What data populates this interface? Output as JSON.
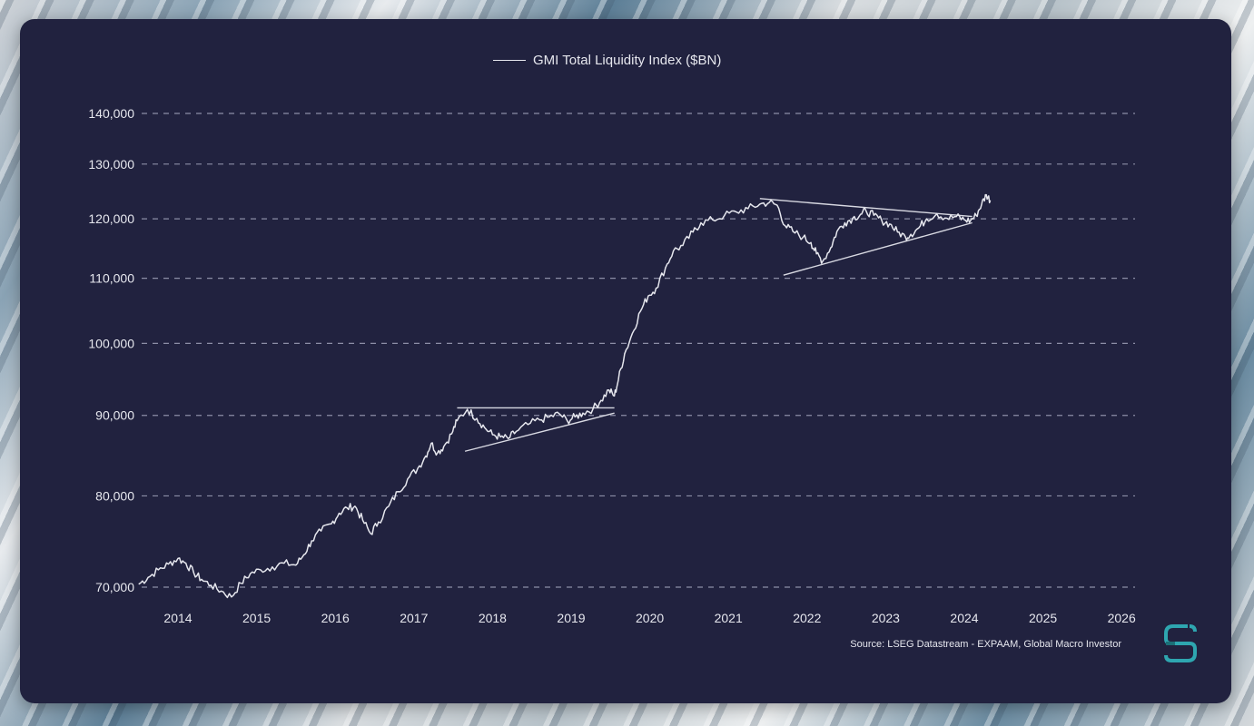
{
  "chart_data": {
    "type": "line",
    "y_scale": "log",
    "ylim": [
      69000,
      140000
    ],
    "y_ticks": [
      70000,
      80000,
      90000,
      100000,
      110000,
      120000,
      130000,
      140000
    ],
    "y_tick_labels": [
      "70,000",
      "80,000",
      "90,000",
      "100,000",
      "110,000",
      "120,000",
      "130,000",
      "140,000"
    ],
    "x_ticks": [
      2014,
      2015,
      2016,
      2017,
      2018,
      2019,
      2020,
      2021,
      2022,
      2023,
      2024,
      2025,
      2026
    ],
    "x_tick_labels": [
      "2014",
      "2015",
      "2016",
      "2017",
      "2018",
      "2019",
      "2020",
      "2021",
      "2022",
      "2023",
      "2024",
      "2025",
      "2026"
    ],
    "xlim": [
      2013.5,
      2026.3
    ],
    "grid": "horizontal-dashed",
    "legend": "top-center",
    "series": [
      {
        "name": "GMI Total Liquidity Index ($BN)",
        "color": "#e6e7ee",
        "points": [
          [
            2013.5,
            70300
          ],
          [
            2013.62,
            71000
          ],
          [
            2013.75,
            71800
          ],
          [
            2013.88,
            72400
          ],
          [
            2014.0,
            73000
          ],
          [
            2014.1,
            72500
          ],
          [
            2014.2,
            71500
          ],
          [
            2014.3,
            70800
          ],
          [
            2014.42,
            70200
          ],
          [
            2014.55,
            69600
          ],
          [
            2014.68,
            69000
          ],
          [
            2014.8,
            70400
          ],
          [
            2014.92,
            71400
          ],
          [
            2015.05,
            71800
          ],
          [
            2015.2,
            72100
          ],
          [
            2015.35,
            72500
          ],
          [
            2015.5,
            72300
          ],
          [
            2015.6,
            73400
          ],
          [
            2015.7,
            74900
          ],
          [
            2015.82,
            76000
          ],
          [
            2015.95,
            76800
          ],
          [
            2016.05,
            78000
          ],
          [
            2016.15,
            78600
          ],
          [
            2016.25,
            78800
          ],
          [
            2016.35,
            77200
          ],
          [
            2016.45,
            75700
          ],
          [
            2016.55,
            77000
          ],
          [
            2016.68,
            78800
          ],
          [
            2016.8,
            80500
          ],
          [
            2016.92,
            82000
          ],
          [
            2017.05,
            83300
          ],
          [
            2017.15,
            84800
          ],
          [
            2017.22,
            86400
          ],
          [
            2017.3,
            85200
          ],
          [
            2017.38,
            86000
          ],
          [
            2017.48,
            87600
          ],
          [
            2017.55,
            89300
          ],
          [
            2017.68,
            90800
          ],
          [
            2017.8,
            89600
          ],
          [
            2017.9,
            88400
          ],
          [
            2018.0,
            87500
          ],
          [
            2018.1,
            87200
          ],
          [
            2018.2,
            87000
          ],
          [
            2018.3,
            87900
          ],
          [
            2018.45,
            88800
          ],
          [
            2018.6,
            89400
          ],
          [
            2018.72,
            89800
          ],
          [
            2018.85,
            90200
          ],
          [
            2018.95,
            89300
          ],
          [
            2019.05,
            89800
          ],
          [
            2019.15,
            90300
          ],
          [
            2019.28,
            90900
          ],
          [
            2019.38,
            92000
          ],
          [
            2019.48,
            93400
          ],
          [
            2019.55,
            92600
          ],
          [
            2019.6,
            94800
          ],
          [
            2019.68,
            98500
          ],
          [
            2019.78,
            101500
          ],
          [
            2019.88,
            104800
          ],
          [
            2019.98,
            107200
          ],
          [
            2020.08,
            108400
          ],
          [
            2020.2,
            111700
          ],
          [
            2020.3,
            114500
          ],
          [
            2020.42,
            115400
          ],
          [
            2020.55,
            117700
          ],
          [
            2020.65,
            119300
          ],
          [
            2020.8,
            119800
          ],
          [
            2020.95,
            120600
          ],
          [
            2021.1,
            121200
          ],
          [
            2021.25,
            121800
          ],
          [
            2021.4,
            122600
          ],
          [
            2021.52,
            122900
          ],
          [
            2021.62,
            122400
          ],
          [
            2021.72,
            118800
          ],
          [
            2021.82,
            117800
          ],
          [
            2021.95,
            116800
          ],
          [
            2022.05,
            115900
          ],
          [
            2022.12,
            114000
          ],
          [
            2022.2,
            112800
          ],
          [
            2022.3,
            115000
          ],
          [
            2022.38,
            117800
          ],
          [
            2022.48,
            119300
          ],
          [
            2022.58,
            120100
          ],
          [
            2022.68,
            120800
          ],
          [
            2022.75,
            121400
          ],
          [
            2022.85,
            120600
          ],
          [
            2022.95,
            119700
          ],
          [
            2023.05,
            119100
          ],
          [
            2023.15,
            117700
          ],
          [
            2023.25,
            116900
          ],
          [
            2023.32,
            117300
          ],
          [
            2023.42,
            118400
          ],
          [
            2023.52,
            120000
          ],
          [
            2023.65,
            120900
          ],
          [
            2023.78,
            120100
          ],
          [
            2023.9,
            120400
          ],
          [
            2024.0,
            119800
          ],
          [
            2024.08,
            119700
          ],
          [
            2024.15,
            120600
          ],
          [
            2024.22,
            122600
          ],
          [
            2024.28,
            124300
          ],
          [
            2024.33,
            123300
          ]
        ]
      }
    ],
    "trendlines": [
      {
        "from": [
          2017.55,
          91000
        ],
        "to": [
          2019.55,
          91000
        ]
      },
      {
        "from": [
          2017.65,
          85400
        ],
        "to": [
          2019.55,
          90300
        ]
      },
      {
        "from": [
          2021.4,
          123600
        ],
        "to": [
          2024.1,
          120400
        ]
      },
      {
        "from": [
          2021.7,
          110500
        ],
        "to": [
          2024.1,
          119300
        ]
      }
    ]
  },
  "legend_label": "GMI Total Liquidity Index ($BN)",
  "source_text": "Source: LSEG Datastream - EXPAAM, Global Macro Investor",
  "logo_icon": "expaam-logo-icon",
  "colors": {
    "card_background": "#21223f",
    "line": "#e6e7ee",
    "grid": "#8c8ea6",
    "logo_accent": "#2ea6b0"
  }
}
